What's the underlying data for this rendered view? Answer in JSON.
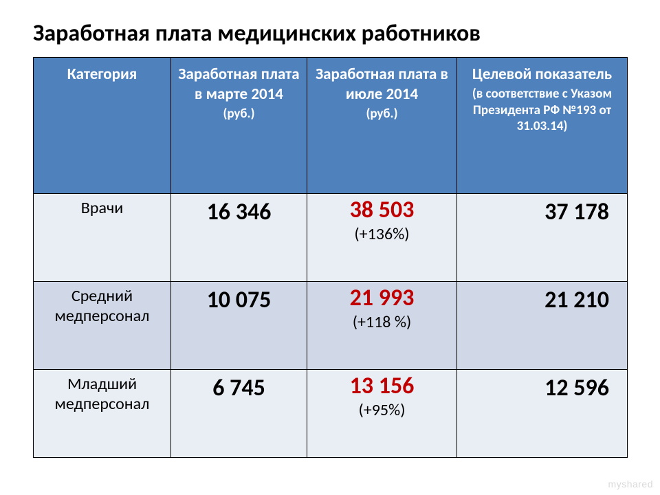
{
  "title": "Заработная плата медицинских работников",
  "table": {
    "type": "table",
    "header_bg": "#4f81bd",
    "header_fg": "#ffffff",
    "row_bg": "#e9edf4",
    "row_bg_alt": "#d0d8e8",
    "border_color": "#000000",
    "highlight_color": "#c00000",
    "columns": [
      {
        "label": "Категория"
      },
      {
        "label": "Заработная плата в марте 2014",
        "sub": "(руб.)"
      },
      {
        "label": "Заработная плата в июле 2014",
        "sub": "(руб.)"
      },
      {
        "label": "Целевой показатель",
        "sub": "(в соответствие с Указом Президента РФ №193 от 31.03.14)"
      }
    ],
    "rows": [
      {
        "category": "Врачи",
        "march": "16 346",
        "july": "38 503",
        "july_pct": "(+136%)",
        "target": "37 178"
      },
      {
        "category": "Средний медперсонал",
        "march": "10 075",
        "july": "21 993",
        "july_pct": "(+118 %)",
        "target": "21 210"
      },
      {
        "category": "Младший медперсонал",
        "march": "6 745",
        "july": "13 156",
        "july_pct": "(+95%)",
        "target": "12 596"
      }
    ]
  },
  "watermark": "myshared"
}
